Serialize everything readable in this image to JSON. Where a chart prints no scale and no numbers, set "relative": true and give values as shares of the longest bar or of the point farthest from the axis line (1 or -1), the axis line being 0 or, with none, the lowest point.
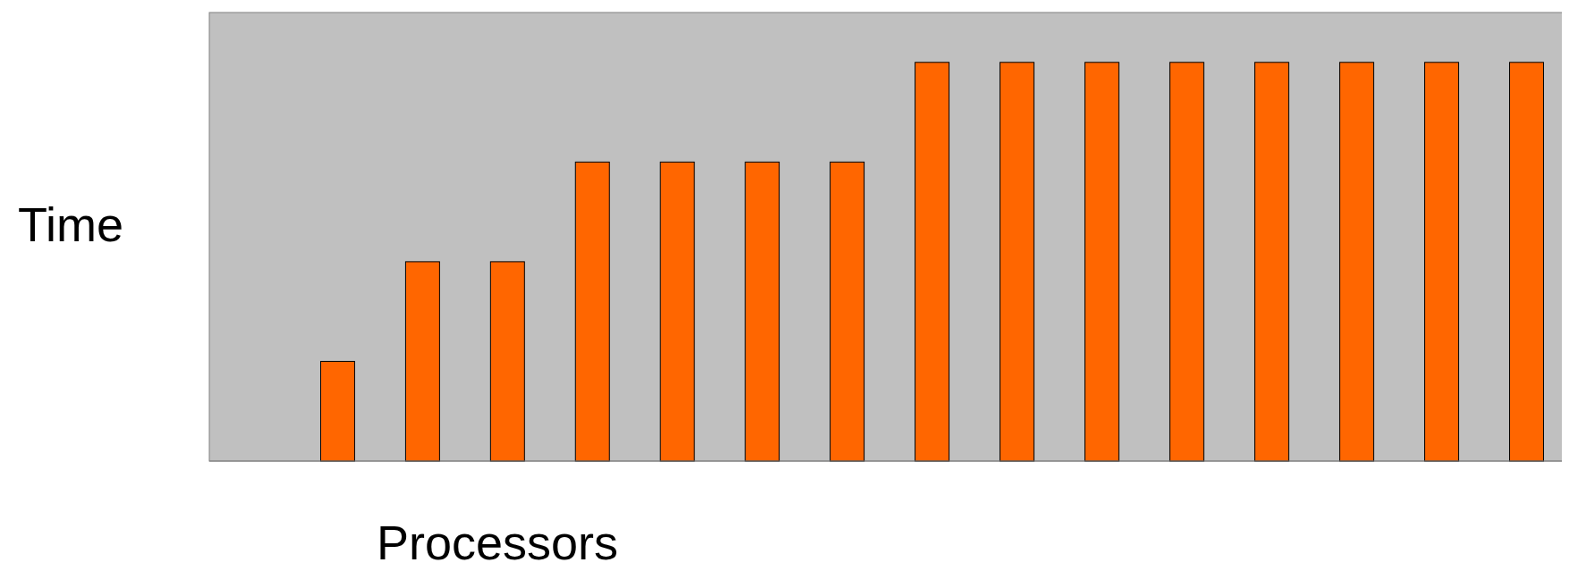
{
  "chart_data": {
    "type": "bar",
    "xlabel": "Processors",
    "ylabel": "Time",
    "relative": true,
    "categories": [
      null,
      null,
      null,
      null,
      null,
      null,
      null,
      null,
      null,
      null,
      null,
      null,
      null,
      null,
      null
    ],
    "values": [
      0.25,
      0.5,
      0.5,
      0.75,
      0.75,
      0.75,
      0.75,
      1,
      1,
      1,
      1,
      1,
      1,
      1,
      1
    ],
    "color": "#ff6600"
  }
}
